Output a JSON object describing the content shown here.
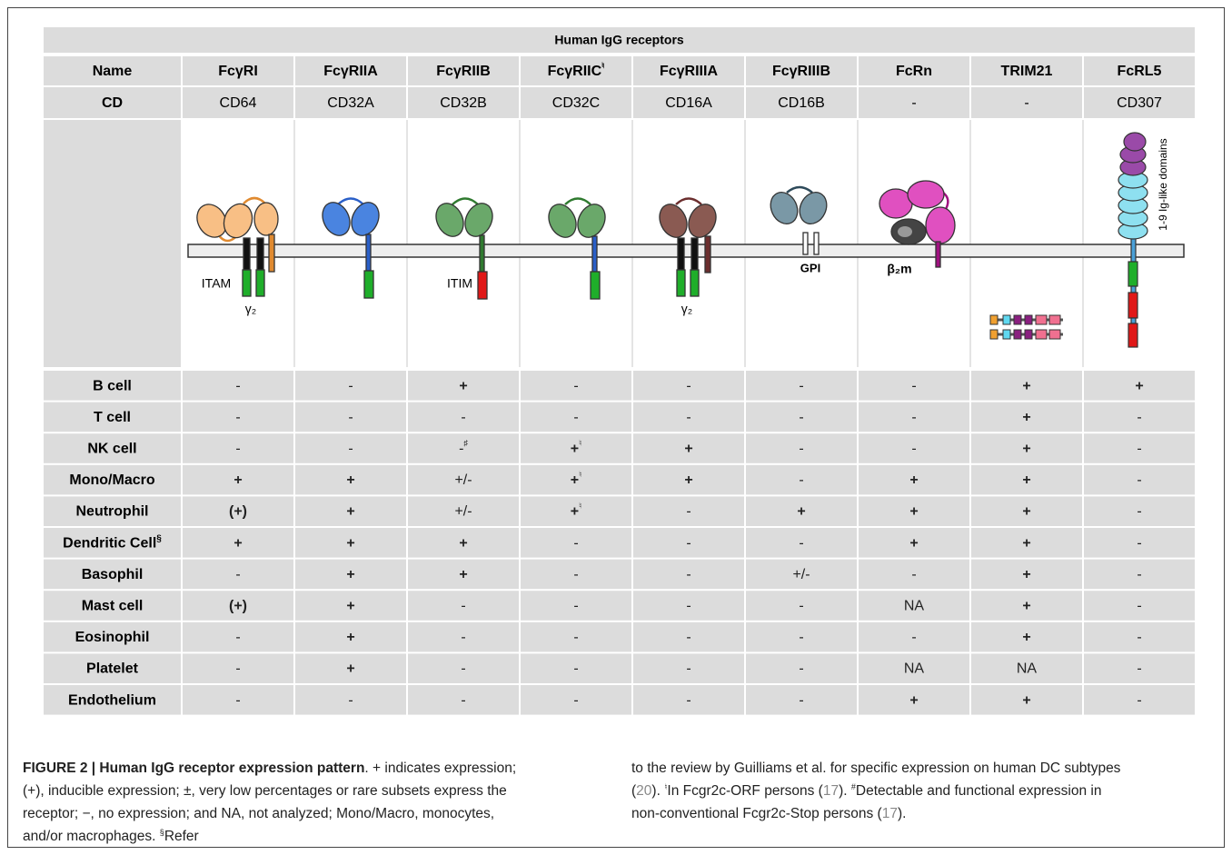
{
  "table": {
    "title": "Human IgG receptors",
    "row_headers": {
      "name": "Name",
      "cd": "CD"
    },
    "columns": [
      {
        "name": "FcγRI",
        "cd": "CD64"
      },
      {
        "name": "FcγRIIA",
        "cd": "CD32A"
      },
      {
        "name": "FcγRIIB",
        "cd": "CD32B"
      },
      {
        "name": "FcγRIIC",
        "name_sup": "♮",
        "cd": "CD32C"
      },
      {
        "name": "FcγRIIIA",
        "cd": "CD16A"
      },
      {
        "name": "FcγRIIIB",
        "cd": "CD16B"
      },
      {
        "name": "FcRn",
        "cd": "-"
      },
      {
        "name": "TRIM21",
        "cd": "-"
      },
      {
        "name": "FcRL5",
        "cd": "CD307"
      }
    ],
    "rows": [
      {
        "cell": "B cell",
        "values": [
          "-",
          "-",
          "+",
          "-",
          "-",
          "-",
          "-",
          "+",
          "+"
        ]
      },
      {
        "cell": "T cell",
        "values": [
          "-",
          "-",
          "-",
          "-",
          "-",
          "-",
          "-",
          "+",
          "-"
        ]
      },
      {
        "cell": "NK cell",
        "values": [
          "-",
          "-",
          {
            "text": "-",
            "sup": "♯"
          },
          {
            "text": "+",
            "sup": "♮"
          },
          "+",
          "-",
          "-",
          "+",
          "-"
        ]
      },
      {
        "cell": "Mono/Macro",
        "values": [
          "+",
          "+",
          "+/-",
          {
            "text": "+",
            "sup": "♮"
          },
          "+",
          "-",
          "+",
          "+",
          "-"
        ]
      },
      {
        "cell": "Neutrophil",
        "values": [
          "(+)",
          "+",
          "+/-",
          {
            "text": "+",
            "sup": "♮"
          },
          "-",
          "+",
          "+",
          "+",
          "-"
        ]
      },
      {
        "cell": "Dendritic Cell",
        "cell_sup": "§",
        "values": [
          "+",
          "+",
          "+",
          "-",
          "-",
          "-",
          "+",
          "+",
          "-"
        ]
      },
      {
        "cell": "Basophil",
        "values": [
          "-",
          "+",
          "+",
          "-",
          "-",
          "+/-",
          "-",
          "+",
          "-"
        ]
      },
      {
        "cell": "Mast cell",
        "values": [
          "(+)",
          "+",
          "-",
          "-",
          "-",
          "-",
          "NA",
          "+",
          "-"
        ]
      },
      {
        "cell": "Eosinophil",
        "values": [
          "-",
          "+",
          "-",
          "-",
          "-",
          "-",
          "-",
          "+",
          "-"
        ]
      },
      {
        "cell": "Platelet",
        "values": [
          "-",
          "+",
          "-",
          "-",
          "-",
          "-",
          "NA",
          "NA",
          "-"
        ]
      },
      {
        "cell": "Endothelium",
        "values": [
          "-",
          "-",
          "-",
          "-",
          "-",
          "-",
          "+",
          "+",
          "-"
        ]
      }
    ]
  },
  "diagram": {
    "itam": "ITAM",
    "gamma_1": "γ₂",
    "itim": "ITIM",
    "gamma_2": "γ₂",
    "gpi": "GPI",
    "b2m": "β₂m",
    "ig_domains": "1-9 Ig-like domains"
  },
  "caption": {
    "left": [
      {
        "bold": "FIGURE 2 | Human IgG receptor expression pattern"
      },
      {
        "text": ". + indicates expression; (+), inducible expression; ±, very low percentages or rare subsets express the receptor; −, no expression; and NA, not analyzed; Mono/Macro, monocytes, and/or macrophages. "
      },
      {
        "sup": "§"
      },
      {
        "text": "Refer"
      }
    ],
    "right": [
      {
        "text": "to the review by Guilliams et al. for specific expression on human DC subtypes ("
      },
      {
        "ref": "20"
      },
      {
        "text": "). "
      },
      {
        "sup": "♮"
      },
      {
        "text": "In Fcgr2c-ORF persons ("
      },
      {
        "ref": "17"
      },
      {
        "text": "). "
      },
      {
        "sup": "#"
      },
      {
        "text": "Detectable and functional expression in non-conventional Fcgr2c-Stop persons ("
      },
      {
        "ref": "17"
      },
      {
        "text": ")."
      }
    ]
  }
}
